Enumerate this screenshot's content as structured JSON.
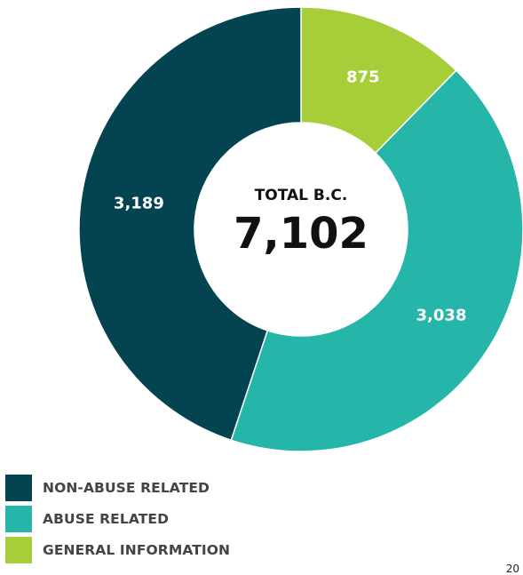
{
  "chart_data": {
    "type": "pie",
    "variant": "donut",
    "center": {
      "label": "TOTAL B.C.",
      "total": "7,102"
    },
    "slices": [
      {
        "name": "GENERAL INFORMATION",
        "value": 875,
        "label": "875",
        "color": "#a6ce39"
      },
      {
        "name": "ABUSE RELATED",
        "value": 3038,
        "label": "3,038",
        "color": "#26b5a9"
      },
      {
        "name": "NON-ABUSE RELATED",
        "value": 3189,
        "label": "3,189",
        "color": "#034450"
      }
    ],
    "start": "top",
    "direction": "clockwise",
    "legend": {
      "placement": "bottom-left",
      "items": [
        {
          "label": "NON-ABUSE RELATED",
          "color": "#034450"
        },
        {
          "label": "ABUSE RELATED",
          "color": "#26b5a9"
        },
        {
          "label": "GENERAL INFORMATION",
          "color": "#a6ce39"
        }
      ]
    }
  },
  "page_number": "20"
}
